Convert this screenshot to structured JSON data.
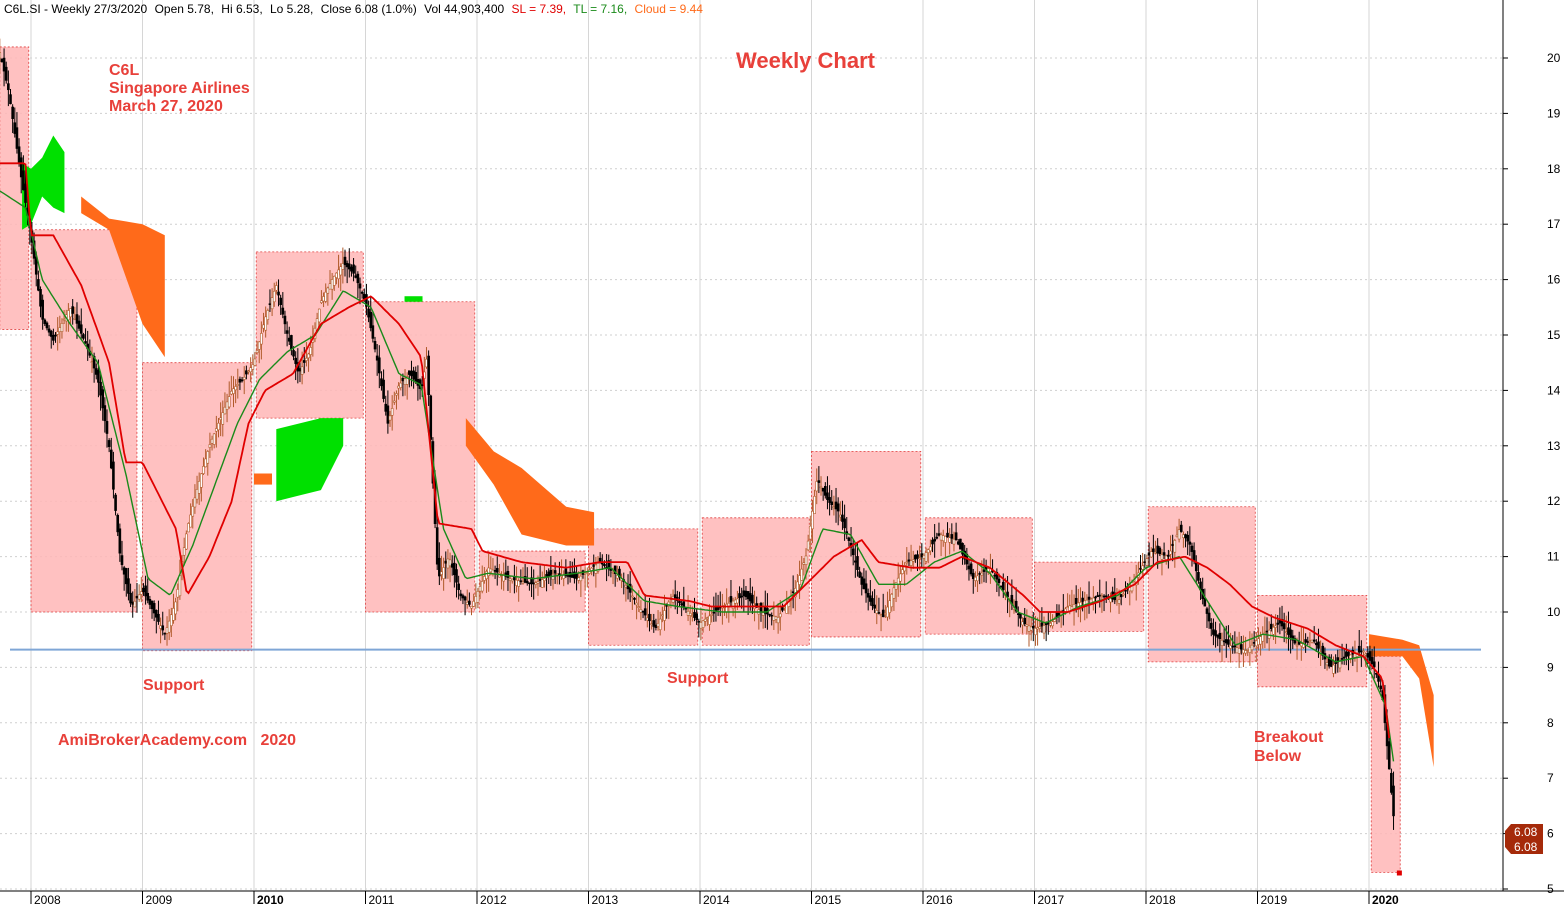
{
  "header": {
    "symbol": "C6L.SI",
    "period": "Weekly 27/3/2020",
    "open": "Open 5.78,",
    "high": "Hi 6.53,",
    "low": "Lo 5.28,",
    "close": "Close 6.08 (1.0%)",
    "volume": "Vol 44,903,400",
    "sl": "SL = 7.39,",
    "tl": "TL = 7.16,",
    "cloud": "Cloud = 9.44"
  },
  "annotations": {
    "title": "Weekly Chart",
    "ticker": "C6L",
    "company": "Singapore Airlines",
    "date": "March 27, 2020",
    "support_left": "Support",
    "support_mid": "Support",
    "watermark": "AmiBrokerAcademy.com   2020",
    "breakout_line1": "Breakout",
    "breakout_line2": "Below"
  },
  "price_badge": {
    "line1": "6.08",
    "line2": "6.08"
  },
  "colors": {
    "candle": "#000000",
    "sl_line": "#e00000",
    "tl_line": "#1a8a1a",
    "cloud_up": "#00e000",
    "cloud_down": "#ff6a1a",
    "box_fill": "#ffb6b6",
    "support_line": "#7fa6d6",
    "annotation": "#e8403a",
    "badge": "#a52a0a"
  },
  "chart_data": {
    "type": "line",
    "title": "Weekly Chart",
    "xlabel": "",
    "ylabel": "",
    "ylim": [
      5,
      20.5
    ],
    "xlim": [
      2007.7,
      2021.2
    ],
    "yticks": [
      5,
      6,
      7,
      8,
      9,
      10,
      11,
      12,
      13,
      14,
      15,
      16,
      17,
      18,
      19,
      20
    ],
    "xticks": [
      {
        "x": 2008,
        "label": "2008"
      },
      {
        "x": 2009,
        "label": "2009"
      },
      {
        "x": 2010,
        "label": "2010"
      },
      {
        "x": 2011,
        "label": "2011"
      },
      {
        "x": 2012,
        "label": "2012"
      },
      {
        "x": 2013,
        "label": "2013"
      },
      {
        "x": 2014,
        "label": "2014"
      },
      {
        "x": 2015,
        "label": "2015"
      },
      {
        "x": 2016,
        "label": "2016"
      },
      {
        "x": 2017,
        "label": "2017"
      },
      {
        "x": 2018,
        "label": "2018"
      },
      {
        "x": 2019,
        "label": "2019"
      },
      {
        "x": 2020,
        "label": "2020"
      }
    ],
    "grid": true,
    "support_level": 9.32,
    "price_anchors": [
      [
        2007.72,
        20.1
      ],
      [
        2007.8,
        19.4
      ],
      [
        2007.9,
        18.0
      ],
      [
        2008.0,
        16.8
      ],
      [
        2008.1,
        15.3
      ],
      [
        2008.2,
        14.9
      ],
      [
        2008.35,
        15.5
      ],
      [
        2008.5,
        14.8
      ],
      [
        2008.6,
        14.2
      ],
      [
        2008.7,
        13.0
      ],
      [
        2008.8,
        11.0
      ],
      [
        2008.9,
        10.1
      ],
      [
        2009.0,
        10.4
      ],
      [
        2009.1,
        10.0
      ],
      [
        2009.2,
        9.6
      ],
      [
        2009.3,
        10.2
      ],
      [
        2009.4,
        11.5
      ],
      [
        2009.5,
        12.3
      ],
      [
        2009.6,
        13.0
      ],
      [
        2009.7,
        13.5
      ],
      [
        2009.8,
        14.0
      ],
      [
        2009.9,
        14.2
      ],
      [
        2010.0,
        14.5
      ],
      [
        2010.1,
        15.3
      ],
      [
        2010.2,
        15.9
      ],
      [
        2010.3,
        15.0
      ],
      [
        2010.4,
        14.3
      ],
      [
        2010.5,
        14.7
      ],
      [
        2010.6,
        15.6
      ],
      [
        2010.7,
        16.0
      ],
      [
        2010.8,
        16.3
      ],
      [
        2010.9,
        16.1
      ],
      [
        2011.0,
        15.6
      ],
      [
        2011.1,
        14.6
      ],
      [
        2011.2,
        13.4
      ],
      [
        2011.3,
        14.1
      ],
      [
        2011.4,
        14.3
      ],
      [
        2011.5,
        14.0
      ],
      [
        2011.55,
        14.6
      ],
      [
        2011.6,
        12.5
      ],
      [
        2011.65,
        10.6
      ],
      [
        2011.75,
        11.0
      ],
      [
        2011.85,
        10.3
      ],
      [
        2011.95,
        10.1
      ],
      [
        2012.1,
        10.8
      ],
      [
        2012.3,
        10.6
      ],
      [
        2012.5,
        10.5
      ],
      [
        2012.7,
        10.7
      ],
      [
        2012.9,
        10.6
      ],
      [
        2013.1,
        10.9
      ],
      [
        2013.3,
        10.6
      ],
      [
        2013.45,
        10.1
      ],
      [
        2013.6,
        9.7
      ],
      [
        2013.75,
        10.3
      ],
      [
        2013.9,
        10.0
      ],
      [
        2014.0,
        9.8
      ],
      [
        2014.2,
        10.1
      ],
      [
        2014.4,
        10.3
      ],
      [
        2014.55,
        10.0
      ],
      [
        2014.7,
        9.9
      ],
      [
        2014.85,
        10.4
      ],
      [
        2014.95,
        11.0
      ],
      [
        2015.05,
        12.4
      ],
      [
        2015.15,
        12.0
      ],
      [
        2015.25,
        11.8
      ],
      [
        2015.35,
        11.2
      ],
      [
        2015.45,
        10.5
      ],
      [
        2015.55,
        10.1
      ],
      [
        2015.65,
        9.9
      ],
      [
        2015.75,
        10.5
      ],
      [
        2015.85,
        10.9
      ],
      [
        2016.0,
        11.0
      ],
      [
        2016.15,
        11.4
      ],
      [
        2016.3,
        11.3
      ],
      [
        2016.45,
        10.6
      ],
      [
        2016.6,
        10.8
      ],
      [
        2016.75,
        10.3
      ],
      [
        2016.9,
        9.8
      ],
      [
        2017.0,
        9.7
      ],
      [
        2017.15,
        9.8
      ],
      [
        2017.3,
        10.1
      ],
      [
        2017.45,
        10.2
      ],
      [
        2017.6,
        10.3
      ],
      [
        2017.75,
        10.2
      ],
      [
        2017.9,
        10.6
      ],
      [
        2018.05,
        11.1
      ],
      [
        2018.2,
        11.0
      ],
      [
        2018.3,
        11.5
      ],
      [
        2018.4,
        11.2
      ],
      [
        2018.5,
        10.3
      ],
      [
        2018.6,
        9.6
      ],
      [
        2018.75,
        9.4
      ],
      [
        2018.9,
        9.3
      ],
      [
        2019.05,
        9.6
      ],
      [
        2019.2,
        9.8
      ],
      [
        2019.35,
        9.4
      ],
      [
        2019.5,
        9.5
      ],
      [
        2019.65,
        9.0
      ],
      [
        2019.8,
        9.2
      ],
      [
        2019.95,
        9.3
      ],
      [
        2020.05,
        9.0
      ],
      [
        2020.12,
        8.5
      ],
      [
        2020.18,
        7.2
      ],
      [
        2020.23,
        6.1
      ]
    ],
    "sl_anchors": [
      [
        2007.72,
        18.1
      ],
      [
        2007.95,
        18.1
      ],
      [
        2008.0,
        16.8
      ],
      [
        2008.2,
        16.8
      ],
      [
        2008.45,
        15.9
      ],
      [
        2008.7,
        14.5
      ],
      [
        2008.85,
        12.7
      ],
      [
        2009.0,
        12.7
      ],
      [
        2009.3,
        11.5
      ],
      [
        2009.4,
        10.3
      ],
      [
        2009.6,
        11.0
      ],
      [
        2009.8,
        12.0
      ],
      [
        2009.95,
        13.4
      ],
      [
        2010.1,
        14.0
      ],
      [
        2010.35,
        14.3
      ],
      [
        2010.6,
        15.2
      ],
      [
        2010.85,
        15.5
      ],
      [
        2011.05,
        15.7
      ],
      [
        2011.3,
        15.2
      ],
      [
        2011.5,
        14.6
      ],
      [
        2011.65,
        11.6
      ],
      [
        2011.95,
        11.5
      ],
      [
        2012.05,
        11.1
      ],
      [
        2012.4,
        10.9
      ],
      [
        2012.8,
        10.8
      ],
      [
        2013.1,
        10.9
      ],
      [
        2013.35,
        10.9
      ],
      [
        2013.5,
        10.3
      ],
      [
        2013.9,
        10.2
      ],
      [
        2014.1,
        10.1
      ],
      [
        2014.5,
        10.1
      ],
      [
        2014.75,
        10.1
      ],
      [
        2014.95,
        10.5
      ],
      [
        2015.2,
        11.0
      ],
      [
        2015.45,
        11.3
      ],
      [
        2015.6,
        10.9
      ],
      [
        2015.9,
        10.8
      ],
      [
        2016.15,
        10.8
      ],
      [
        2016.35,
        11.0
      ],
      [
        2016.6,
        10.8
      ],
      [
        2016.9,
        10.3
      ],
      [
        2017.05,
        10.0
      ],
      [
        2017.3,
        10.0
      ],
      [
        2017.6,
        10.2
      ],
      [
        2017.9,
        10.5
      ],
      [
        2018.1,
        10.9
      ],
      [
        2018.35,
        11.0
      ],
      [
        2018.55,
        10.8
      ],
      [
        2018.75,
        10.5
      ],
      [
        2018.95,
        10.1
      ],
      [
        2019.15,
        9.9
      ],
      [
        2019.45,
        9.7
      ],
      [
        2019.7,
        9.4
      ],
      [
        2019.95,
        9.2
      ],
      [
        2020.12,
        8.8
      ],
      [
        2020.2,
        7.4
      ]
    ],
    "tl_anchors": [
      [
        2007.72,
        17.6
      ],
      [
        2007.95,
        17.3
      ],
      [
        2008.1,
        16.0
      ],
      [
        2008.35,
        15.2
      ],
      [
        2008.6,
        14.5
      ],
      [
        2008.85,
        12.5
      ],
      [
        2009.05,
        10.6
      ],
      [
        2009.25,
        10.3
      ],
      [
        2009.45,
        11.2
      ],
      [
        2009.65,
        12.3
      ],
      [
        2009.85,
        13.4
      ],
      [
        2010.05,
        14.2
      ],
      [
        2010.3,
        14.7
      ],
      [
        2010.55,
        15.0
      ],
      [
        2010.8,
        15.8
      ],
      [
        2011.05,
        15.5
      ],
      [
        2011.3,
        14.3
      ],
      [
        2011.5,
        14.1
      ],
      [
        2011.7,
        11.5
      ],
      [
        2011.9,
        10.6
      ],
      [
        2012.1,
        10.7
      ],
      [
        2012.5,
        10.6
      ],
      [
        2012.9,
        10.7
      ],
      [
        2013.2,
        10.8
      ],
      [
        2013.5,
        10.2
      ],
      [
        2013.8,
        10.1
      ],
      [
        2014.2,
        10.0
      ],
      [
        2014.6,
        10.0
      ],
      [
        2014.9,
        10.4
      ],
      [
        2015.1,
        11.5
      ],
      [
        2015.35,
        11.4
      ],
      [
        2015.6,
        10.5
      ],
      [
        2015.85,
        10.5
      ],
      [
        2016.1,
        10.9
      ],
      [
        2016.35,
        11.1
      ],
      [
        2016.6,
        10.7
      ],
      [
        2016.85,
        10.0
      ],
      [
        2017.1,
        9.8
      ],
      [
        2017.4,
        10.1
      ],
      [
        2017.75,
        10.3
      ],
      [
        2018.0,
        10.8
      ],
      [
        2018.3,
        11.0
      ],
      [
        2018.55,
        10.2
      ],
      [
        2018.8,
        9.4
      ],
      [
        2019.05,
        9.6
      ],
      [
        2019.35,
        9.5
      ],
      [
        2019.7,
        9.1
      ],
      [
        2019.95,
        9.2
      ],
      [
        2020.15,
        8.3
      ],
      [
        2020.23,
        7.16
      ]
    ],
    "cloud_up_segments": [
      [
        [
          2007.92,
          18.1,
          16.9
        ],
        [
          2008.0,
          18.0,
          17.0
        ],
        [
          2008.1,
          18.2,
          17.5
        ],
        [
          2008.2,
          18.6,
          17.3
        ],
        [
          2008.3,
          18.3,
          17.2
        ]
      ],
      [
        [
          2010.2,
          13.3,
          12.0
        ],
        [
          2010.4,
          13.4,
          12.1
        ],
        [
          2010.6,
          13.5,
          12.2
        ],
        [
          2010.8,
          13.5,
          13.0
        ]
      ]
    ],
    "cloud_down_segments": [
      [
        [
          2008.45,
          17.5,
          17.2
        ],
        [
          2008.7,
          17.1,
          16.9
        ],
        [
          2009.0,
          17.0,
          15.2
        ],
        [
          2009.2,
          16.8,
          14.6
        ]
      ],
      [
        [
          2011.9,
          13.5,
          13.0
        ],
        [
          2012.15,
          12.9,
          12.3
        ],
        [
          2012.4,
          12.6,
          11.4
        ],
        [
          2012.8,
          11.9,
          11.2
        ],
        [
          2013.05,
          11.8,
          11.2
        ]
      ],
      [
        [
          2020.0,
          9.6,
          9.2
        ],
        [
          2020.3,
          9.5,
          9.2
        ],
        [
          2020.45,
          9.4,
          8.8
        ],
        [
          2020.58,
          8.5,
          7.2
        ]
      ]
    ],
    "cloud_tiny": [
      [
        2010.0,
        12.5,
        12.3
      ],
      [
        2011.35,
        15.7,
        15.6
      ]
    ],
    "boxes": [
      {
        "x0": 2007.72,
        "x1": 2007.98,
        "y0": 15.1,
        "y1": 20.2
      },
      {
        "x0": 2008.0,
        "x1": 2008.95,
        "y0": 10.0,
        "y1": 16.9
      },
      {
        "x0": 2009.0,
        "x1": 2009.98,
        "y0": 9.3,
        "y1": 14.5
      },
      {
        "x0": 2010.02,
        "x1": 2010.98,
        "y0": 13.5,
        "y1": 16.5
      },
      {
        "x0": 2011.0,
        "x1": 2011.98,
        "y0": 10.0,
        "y1": 15.6
      },
      {
        "x0": 2012.02,
        "x1": 2012.97,
        "y0": 10.0,
        "y1": 11.1
      },
      {
        "x0": 2013.0,
        "x1": 2013.98,
        "y0": 9.4,
        "y1": 11.5
      },
      {
        "x0": 2014.02,
        "x1": 2014.98,
        "y0": 9.4,
        "y1": 11.7
      },
      {
        "x0": 2015.0,
        "x1": 2015.98,
        "y0": 9.55,
        "y1": 12.9
      },
      {
        "x0": 2016.02,
        "x1": 2016.98,
        "y0": 9.6,
        "y1": 11.7
      },
      {
        "x0": 2017.0,
        "x1": 2017.98,
        "y0": 9.65,
        "y1": 10.9
      },
      {
        "x0": 2018.02,
        "x1": 2018.98,
        "y0": 9.1,
        "y1": 11.9
      },
      {
        "x0": 2019.0,
        "x1": 2019.98,
        "y0": 8.65,
        "y1": 10.3
      },
      {
        "x0": 2020.02,
        "x1": 2020.28,
        "y0": 5.3,
        "y1": 9.2
      }
    ]
  }
}
